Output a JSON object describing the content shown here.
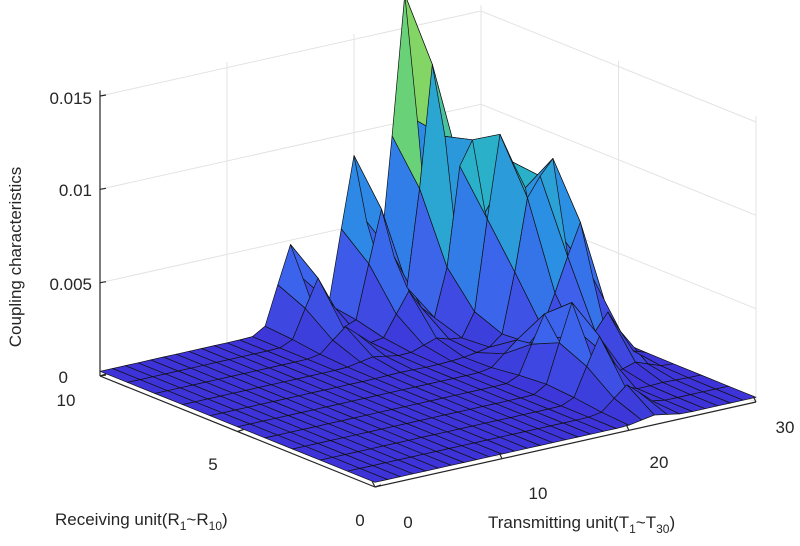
{
  "chart_data": {
    "type": "surface",
    "zlabel": "Coupling characteristics",
    "xlabel": {
      "text": "Transmitting unit(T",
      "sub1": "1",
      "mid": "~T",
      "sub2": "30",
      "end": ")"
    },
    "ylabel": {
      "text": "Receiving unit(R",
      "sub1": "1",
      "mid": "~R",
      "sub2": "10",
      "end": ")"
    },
    "x_ticks": [
      "0",
      "10",
      "20",
      "30"
    ],
    "y_ticks": [
      "0",
      "5",
      "10"
    ],
    "z_ticks": [
      "0",
      "0.005",
      "0.01",
      "0.015"
    ],
    "xlim": [
      0,
      30
    ],
    "ylim": [
      0,
      10
    ],
    "zlim": [
      0,
      0.015
    ],
    "grid": true,
    "colormap": "parula",
    "colors": {
      "low": "#3d2fd6",
      "mid": "#2bb3c7",
      "high": "#e8e33a"
    },
    "peaks": [
      {
        "x": 24,
        "y": 10,
        "z": 0.0162
      },
      {
        "x": 27,
        "y": 6,
        "z": 0.009
      },
      {
        "x": 25,
        "y": 7,
        "z": 0.0095
      },
      {
        "x": 20,
        "y": 10,
        "z": 0.0085
      },
      {
        "x": 22,
        "y": 3,
        "z": 0.0045
      },
      {
        "x": 15,
        "y": 10,
        "z": 0.0045
      }
    ]
  }
}
